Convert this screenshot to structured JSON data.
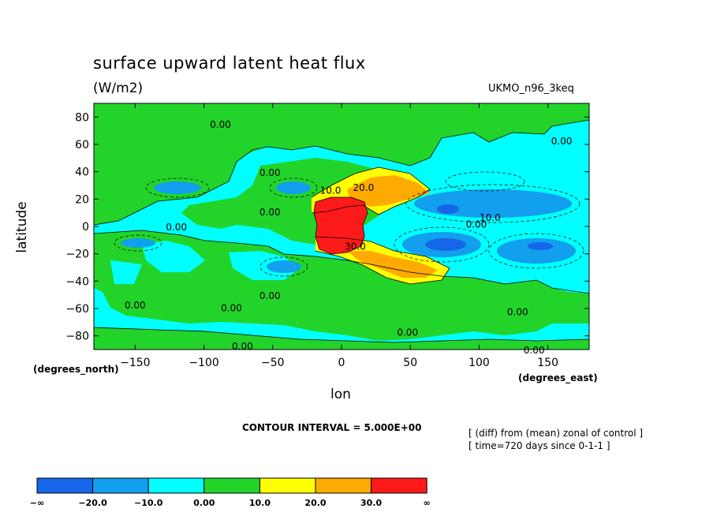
{
  "header": {
    "title": "surface upward latent heat flux",
    "units": "(W/m2)",
    "model": "UKMO_n96_3keq"
  },
  "axes": {
    "ylabel": "latitude",
    "yunits": "(degrees_north)",
    "xlabel": "lon",
    "xunits": "(degrees_east)"
  },
  "footer": {
    "contour_interval": "CONTOUR INTERVAL = 5.000E+00",
    "note_line1": "[ (diff) from (mean) zonal of control ]",
    "note_line2": "[ time=720 days since 0-1-1 ]"
  },
  "chart_data": {
    "type": "heatmap",
    "subtype": "filled-contour-map",
    "title": "surface upward latent heat flux",
    "subtitle": "(W/m2)",
    "xlabel": "lon",
    "ylabel": "latitude",
    "x_units": "(degrees_east)",
    "y_units": "(degrees_north)",
    "xlim": [
      -180,
      180
    ],
    "ylim": [
      -90,
      90
    ],
    "x_ticks": [
      -150,
      -100,
      -50,
      0,
      50,
      100,
      150
    ],
    "y_ticks": [
      80,
      60,
      40,
      20,
      0,
      -20,
      -40,
      -60,
      -80
    ],
    "x_tick_labels": [
      "−150",
      "−100",
      "−50",
      "0",
      "50",
      "100",
      "150"
    ],
    "y_tick_labels": [
      "80",
      "60",
      "40",
      "20",
      "0",
      "−20",
      "−40",
      "−60",
      "−80"
    ],
    "contour_interval": 5,
    "legend": {
      "bins": [
        {
          "color": "#1566e8"
        },
        {
          "color": "#129fee"
        },
        {
          "color": "#00ffff"
        },
        {
          "color": "#22d42a"
        },
        {
          "color": "#ffff00"
        },
        {
          "color": "#ffaa00"
        },
        {
          "color": "#ff1a1a"
        }
      ],
      "boundary_labels": [
        "−∞",
        "−20.0",
        "−10.0",
        "0.00",
        "10.0",
        "20.0",
        "30.0",
        "∞"
      ]
    },
    "contour_labels": [
      {
        "text": "0.00",
        "lon": -88,
        "lat": 72
      },
      {
        "text": "0.00",
        "lon": 160,
        "lat": 60
      },
      {
        "text": "0.00",
        "lon": -52,
        "lat": 37
      },
      {
        "text": "10.0",
        "lon": -8,
        "lat": 24
      },
      {
        "text": "20.0",
        "lon": 16,
        "lat": 26
      },
      {
        "text": "0.00",
        "lon": -52,
        "lat": 8
      },
      {
        "text": "0.00",
        "lon": -120,
        "lat": -3
      },
      {
        "text": "10.0",
        "lon": 108,
        "lat": 4
      },
      {
        "text": "0.00",
        "lon": 98,
        "lat": -1
      },
      {
        "text": "30.0",
        "lon": 10,
        "lat": -17
      },
      {
        "text": "0.00",
        "lon": -52,
        "lat": -53
      },
      {
        "text": "0.00",
        "lon": -150,
        "lat": -60
      },
      {
        "text": "0.00",
        "lon": -80,
        "lat": -62
      },
      {
        "text": "0.00",
        "lon": 128,
        "lat": -65
      },
      {
        "text": "0.00",
        "lon": 48,
        "lat": -80
      },
      {
        "text": "0.00",
        "lon": -72,
        "lat": -90
      },
      {
        "text": "0.00",
        "lon": 140,
        "lat": -93
      }
    ]
  }
}
